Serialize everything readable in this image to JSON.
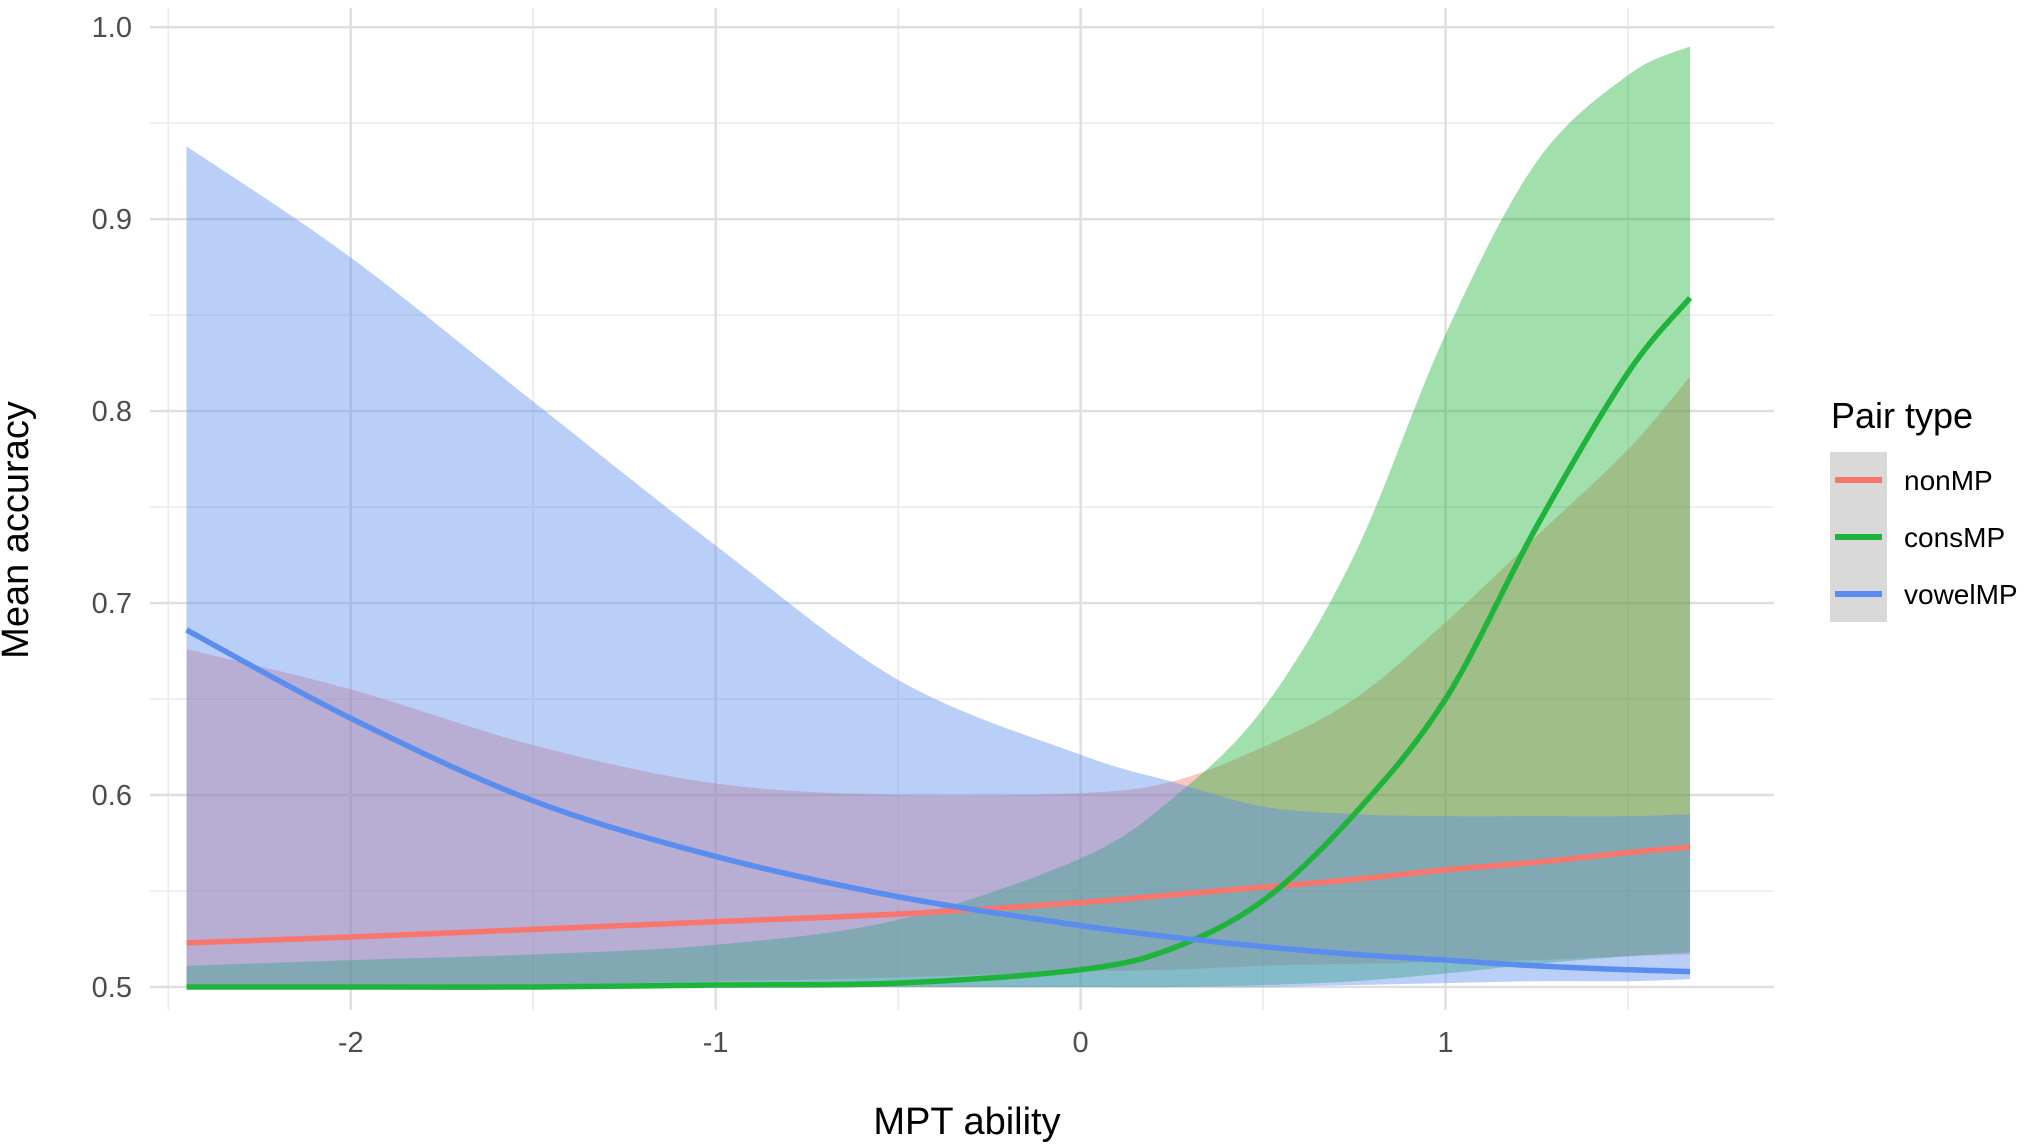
{
  "chart_data": {
    "type": "line",
    "title": "",
    "xlabel": "MPT ability",
    "ylabel": "Mean accuracy",
    "xlim": [
      -2.55,
      1.9
    ],
    "ylim": [
      0.488,
      1.01
    ],
    "x_ticks": [
      -2,
      -1,
      0,
      1
    ],
    "x_tick_labels": [
      "-2",
      "-1",
      "0",
      "1"
    ],
    "y_ticks": [
      0.5,
      0.6,
      0.7,
      0.8,
      0.9,
      1.0
    ],
    "y_tick_labels": [
      "0.5",
      "0.6",
      "0.7",
      "0.8",
      "0.9",
      "1.0"
    ],
    "grid": true,
    "legend": {
      "title": "Pair type",
      "position": "right"
    },
    "x": [
      -2.45,
      -2.0,
      -1.5,
      -1.0,
      -0.5,
      0.0,
      0.25,
      0.5,
      0.75,
      1.0,
      1.25,
      1.5,
      1.67
    ],
    "series": [
      {
        "name": "nonMP",
        "color": "#F8766D",
        "values": [
          0.523,
          0.526,
          0.53,
          0.534,
          0.538,
          0.544,
          0.548,
          0.552,
          0.556,
          0.561,
          0.565,
          0.57,
          0.573
        ],
        "lower": [
          0.5,
          0.5,
          0.501,
          0.503,
          0.505,
          0.508,
          0.509,
          0.511,
          0.512,
          0.513,
          0.514,
          0.516,
          0.517
        ],
        "upper": [
          0.676,
          0.655,
          0.626,
          0.606,
          0.6,
          0.601,
          0.607,
          0.625,
          0.65,
          0.69,
          0.735,
          0.78,
          0.818
        ]
      },
      {
        "name": "consMP",
        "color": "#1EB33A",
        "values": [
          0.5,
          0.5,
          0.5,
          0.501,
          0.502,
          0.509,
          0.52,
          0.545,
          0.59,
          0.65,
          0.74,
          0.82,
          0.859
        ],
        "lower": [
          0.5,
          0.5,
          0.5,
          0.5,
          0.5,
          0.5,
          0.5,
          0.501,
          0.503,
          0.507,
          0.512,
          0.516,
          0.518
        ],
        "upper": [
          0.511,
          0.514,
          0.517,
          0.522,
          0.535,
          0.567,
          0.598,
          0.645,
          0.725,
          0.84,
          0.93,
          0.975,
          0.99
        ]
      },
      {
        "name": "vowelMP",
        "color": "#5B8DEF",
        "values": [
          0.686,
          0.64,
          0.597,
          0.568,
          0.547,
          0.532,
          0.526,
          0.521,
          0.517,
          0.514,
          0.511,
          0.509,
          0.508
        ],
        "lower": [
          0.5,
          0.5,
          0.5,
          0.5,
          0.5,
          0.5,
          0.5,
          0.5,
          0.501,
          0.502,
          0.503,
          0.503,
          0.504
        ],
        "upper": [
          0.938,
          0.88,
          0.805,
          0.73,
          0.66,
          0.621,
          0.607,
          0.594,
          0.59,
          0.589,
          0.589,
          0.589,
          0.59
        ]
      }
    ]
  }
}
